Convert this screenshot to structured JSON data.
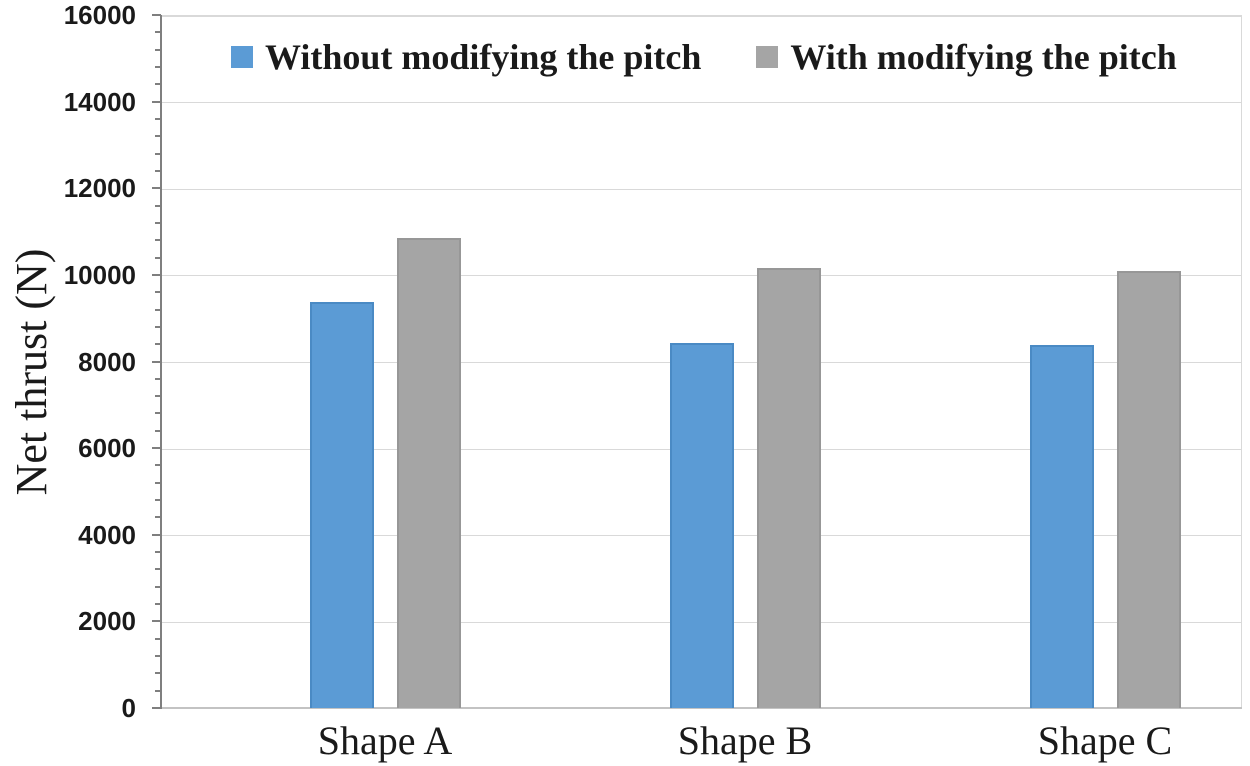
{
  "figure": {
    "background": "#ffffff"
  },
  "chart_data": {
    "type": "bar",
    "title": "",
    "xlabel": "",
    "ylabel": "Net thrust (N)",
    "categories": [
      "Shape A",
      "Shape B",
      "Shape C"
    ],
    "series": [
      {
        "name": "Without modifying the pitch",
        "color": "#5b9bd5",
        "values": [
          9380,
          8430,
          8380
        ]
      },
      {
        "name": "With modifying the pitch",
        "color": "#a5a5a5",
        "values": [
          10860,
          10160,
          10090
        ]
      }
    ],
    "ylim": [
      0,
      16000
    ],
    "ytick_step": 2000,
    "yminortick_step": 400,
    "ytick_labels": [
      "0",
      "2000",
      "4000",
      "6000",
      "8000",
      "10000",
      "12000",
      "14000",
      "16000"
    ],
    "grid": true,
    "legend_position": "top-center"
  },
  "colors": {
    "bar_blue": "#5b9bd5",
    "bar_gray": "#a5a5a5",
    "gridline": "#d9d9d9",
    "axis": "#7f7f7f",
    "text": "#1a1a1a"
  }
}
